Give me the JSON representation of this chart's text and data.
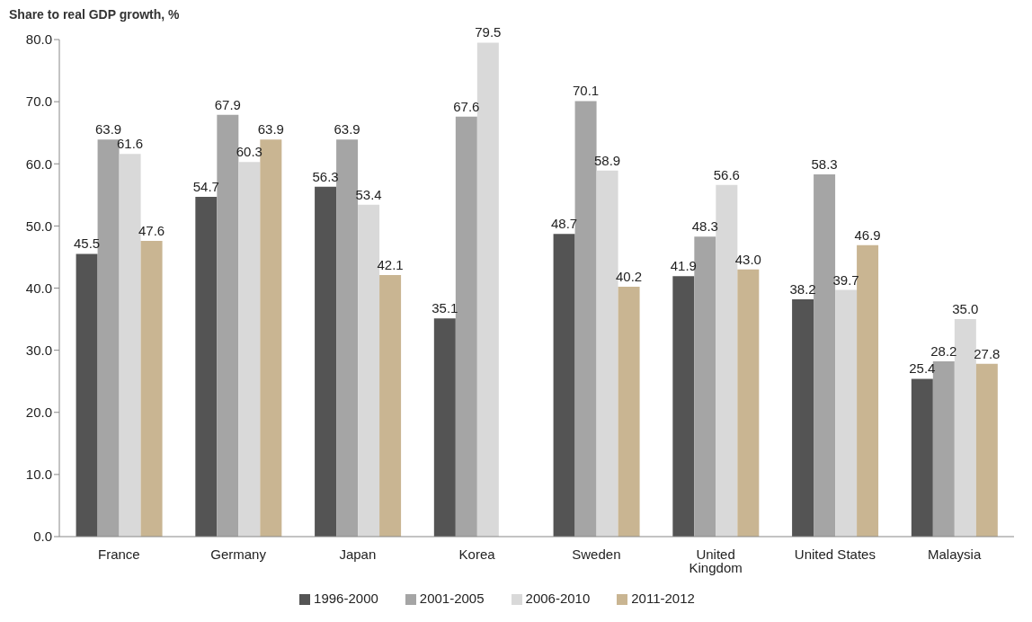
{
  "chart_data": {
    "type": "bar",
    "title": "Share to real GDP growth, %",
    "categories": [
      "France",
      "Germany",
      "Japan",
      "Korea",
      "Sweden",
      "United Kingdom",
      "United States",
      "Malaysia"
    ],
    "series": [
      {
        "name": "1996-2000",
        "color": "#545454",
        "values": [
          45.5,
          54.7,
          56.3,
          35.1,
          48.7,
          41.9,
          38.2,
          25.4
        ],
        "value_labels": [
          "45.5",
          "54.7",
          "56.3",
          "35.1",
          "48.7",
          "41.9",
          "38.2",
          "25.4"
        ]
      },
      {
        "name": "2001-2005",
        "color": "#a5a5a5",
        "values": [
          63.9,
          67.9,
          63.9,
          67.6,
          70.1,
          48.3,
          58.3,
          28.2
        ],
        "value_labels": [
          "63.9",
          "67.9",
          "63.9",
          "67.6",
          "70.1",
          "48.3",
          "58.3",
          "28.2"
        ]
      },
      {
        "name": "2006-2010",
        "color": "#d9d9d9",
        "values": [
          61.6,
          60.3,
          53.4,
          79.5,
          58.9,
          56.6,
          39.7,
          35.0
        ],
        "value_labels": [
          "61.6",
          "60.3",
          "53.4",
          "79.5",
          "58.9",
          "56.6",
          "39.7",
          "35.0"
        ]
      },
      {
        "name": "2011-2012",
        "color": "#c9b592",
        "values": [
          47.6,
          63.9,
          42.1,
          null,
          40.2,
          43.0,
          46.9,
          27.8
        ],
        "value_labels": [
          "47.6",
          "63.9",
          "42.1",
          null,
          "40.2",
          "43.0",
          "46.9",
          "27.8"
        ]
      }
    ],
    "ylim": [
      0,
      80
    ],
    "yticks": [
      {
        "value": 0,
        "label": "0.0"
      },
      {
        "value": 10,
        "label": "10.0"
      },
      {
        "value": 20,
        "label": "20.0"
      },
      {
        "value": 30,
        "label": "30.0"
      },
      {
        "value": 40,
        "label": "40.0"
      },
      {
        "value": 50,
        "label": "50.0"
      },
      {
        "value": 60,
        "label": "60.0"
      },
      {
        "value": 70,
        "label": "70.0"
      },
      {
        "value": 80,
        "label": "80.0"
      }
    ],
    "grid": false,
    "legend": "bottom"
  }
}
